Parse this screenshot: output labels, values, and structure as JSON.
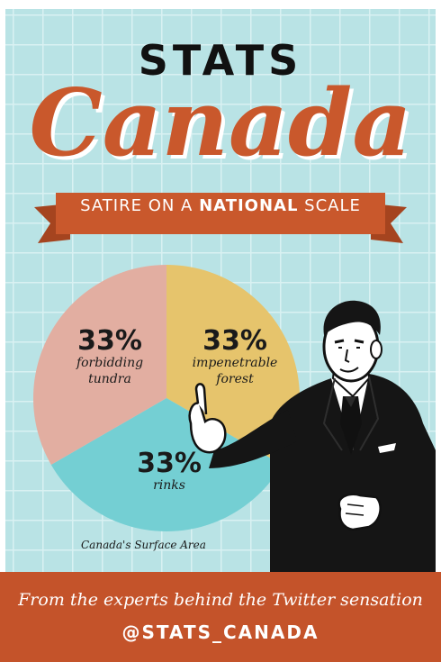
{
  "header": {
    "title_top": "STATS",
    "title_main": "Canada",
    "banner_pre": "SATIRE ON A ",
    "banner_bold": "NATIONAL",
    "banner_post": " SCALE"
  },
  "chart_data": {
    "type": "pie",
    "title": "Canada's Surface Area",
    "slices": [
      {
        "label": "forbidding tundra",
        "value": 33,
        "value_label": "33%",
        "color": "#e6c46c"
      },
      {
        "label": "impenetrable forest",
        "value": 33,
        "value_label": "33%",
        "color": "#74cfd3"
      },
      {
        "label": "rinks",
        "value": 33,
        "value_label": "33%",
        "color": "#e2aea1"
      }
    ]
  },
  "footer": {
    "line1": "From the experts behind the Twitter sensation",
    "line2": "@STATS_CANADA"
  },
  "colors": {
    "background": "#b9e3e5",
    "grid": "#d9f1f2",
    "accent": "#c9582c",
    "footer": "#c4532a"
  }
}
